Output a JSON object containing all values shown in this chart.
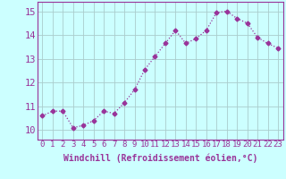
{
  "x": [
    0,
    1,
    2,
    3,
    4,
    5,
    6,
    7,
    8,
    9,
    10,
    11,
    12,
    13,
    14,
    15,
    16,
    17,
    18,
    19,
    20,
    21,
    22,
    23
  ],
  "y": [
    10.6,
    10.8,
    10.8,
    10.1,
    10.2,
    10.4,
    10.8,
    10.7,
    11.15,
    11.7,
    12.55,
    13.1,
    13.65,
    14.2,
    13.65,
    13.85,
    14.2,
    14.95,
    15.0,
    14.7,
    14.5,
    13.9,
    13.65,
    13.45
  ],
  "line_color": "#993399",
  "marker": "D",
  "marker_size": 2.5,
  "bg_color": "#ccffff",
  "grid_color": "#aacccc",
  "xlabel": "Windchill (Refroidissement éolien,°C)",
  "xlabel_fontsize": 7,
  "ylabel_ticks": [
    10,
    11,
    12,
    13,
    14,
    15
  ],
  "ylim": [
    9.6,
    15.4
  ],
  "xlim": [
    -0.5,
    23.5
  ],
  "xtick_labels": [
    "0",
    "1",
    "2",
    "3",
    "4",
    "5",
    "6",
    "7",
    "8",
    "9",
    "10",
    "11",
    "12",
    "13",
    "14",
    "15",
    "16",
    "17",
    "18",
    "19",
    "20",
    "21",
    "22",
    "23"
  ],
  "tick_fontsize": 6.5,
  "ytick_fontsize": 7.5,
  "tick_color": "#993399",
  "label_color": "#993399",
  "spine_color": "#993399"
}
